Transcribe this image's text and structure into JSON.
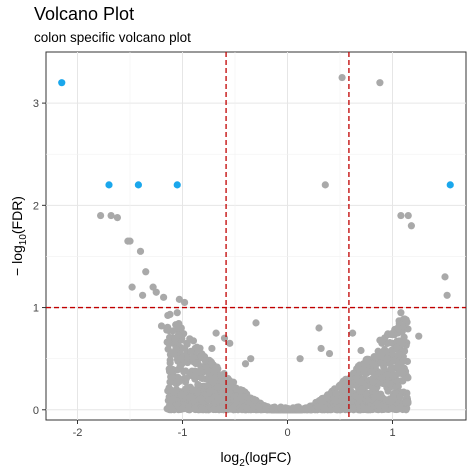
{
  "chart_data": {
    "type": "scatter",
    "title": "Volcano Plot",
    "subtitle": "colon specific volcano plot",
    "xlabel": "log2(logFC)",
    "ylabel": "−log10(FDR)",
    "xlim": [
      -2.3,
      1.7
    ],
    "ylim": [
      -0.1,
      3.5
    ],
    "x_ticks": [
      -2,
      -1,
      0,
      1
    ],
    "x_tick_labels": [
      "-2",
      "-1",
      "0",
      "1"
    ],
    "y_ticks": [
      0,
      1,
      2,
      3
    ],
    "y_tick_labels": [
      "0",
      "1",
      "2",
      "3"
    ],
    "grid": true,
    "thresholds": {
      "vlines": [
        -0.585,
        0.585
      ],
      "hline": 1.0,
      "color": "#c00000"
    },
    "colors": {
      "significant": "#1aa7ec",
      "nonsignificant": "#a9a9a9"
    },
    "significant_points": [
      {
        "x": -2.15,
        "y": 3.2
      },
      {
        "x": -1.7,
        "y": 2.2
      },
      {
        "x": -1.42,
        "y": 2.2
      },
      {
        "x": -1.05,
        "y": 2.2
      },
      {
        "x": 1.55,
        "y": 2.2
      }
    ],
    "nonsignificant_points": [
      {
        "x": 0.52,
        "y": 3.25
      },
      {
        "x": 0.88,
        "y": 3.2
      },
      {
        "x": 0.36,
        "y": 2.2
      },
      {
        "x": -1.68,
        "y": 1.9
      },
      {
        "x": -1.62,
        "y": 1.88
      },
      {
        "x": -1.78,
        "y": 1.9
      },
      {
        "x": -1.5,
        "y": 1.65
      },
      {
        "x": -1.52,
        "y": 1.65
      },
      {
        "x": -1.4,
        "y": 1.55
      },
      {
        "x": -1.35,
        "y": 1.35
      },
      {
        "x": -1.25,
        "y": 1.15
      },
      {
        "x": -1.18,
        "y": 1.1
      },
      {
        "x": -1.03,
        "y": 1.08
      },
      {
        "x": -0.98,
        "y": 1.05
      },
      {
        "x": -1.48,
        "y": 1.2
      },
      {
        "x": -1.38,
        "y": 1.12
      },
      {
        "x": -1.28,
        "y": 1.2
      },
      {
        "x": -1.05,
        "y": 0.95
      },
      {
        "x": 1.08,
        "y": 1.9
      },
      {
        "x": 1.15,
        "y": 1.9
      },
      {
        "x": 1.18,
        "y": 1.8
      },
      {
        "x": 1.5,
        "y": 1.3
      },
      {
        "x": 1.52,
        "y": 1.12
      },
      {
        "x": 1.08,
        "y": 0.95
      },
      {
        "x": 1.13,
        "y": 0.88
      },
      {
        "x": 1.05,
        "y": 0.8
      },
      {
        "x": 1.25,
        "y": 0.72
      },
      {
        "x": -0.68,
        "y": 0.75
      },
      {
        "x": -0.6,
        "y": 0.7
      },
      {
        "x": -0.3,
        "y": 0.85
      },
      {
        "x": -0.72,
        "y": 0.6
      },
      {
        "x": 0.32,
        "y": 0.6
      },
      {
        "x": 0.4,
        "y": 0.55
      },
      {
        "x": 0.62,
        "y": 0.75
      },
      {
        "x": 0.7,
        "y": 0.58
      },
      {
        "x": 0.3,
        "y": 0.8
      },
      {
        "x": -0.35,
        "y": 0.5
      },
      {
        "x": -0.4,
        "y": 0.45
      },
      {
        "x": 0.12,
        "y": 0.5
      },
      {
        "x": 1.0,
        "y": 0.55
      },
      {
        "x": 0.95,
        "y": 0.5
      },
      {
        "x": -1.2,
        "y": 0.82
      },
      {
        "x": -1.15,
        "y": 0.78
      },
      {
        "x": 0.88,
        "y": 0.68
      },
      {
        "x": -0.55,
        "y": 0.65
      }
    ]
  }
}
